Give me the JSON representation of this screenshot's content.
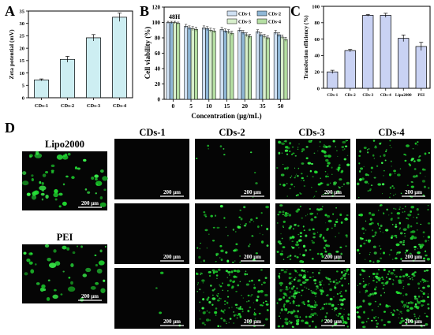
{
  "panels": {
    "A": "A",
    "B": "B",
    "C": "C",
    "D": "D"
  },
  "chart_data": [
    {
      "type": "bar",
      "panel": "A",
      "categories": [
        "CDs-1",
        "CDs-2",
        "CDs-3",
        "CDs-4"
      ],
      "values": [
        7.2,
        15.5,
        24.2,
        32.5
      ],
      "errors": [
        0.4,
        1.2,
        1.3,
        1.7
      ],
      "ylabel": "Zeta potential (mV)",
      "ylim": [
        0,
        35
      ],
      "yticks": [
        0,
        5,
        10,
        15,
        20,
        25,
        30,
        35
      ],
      "bar_color": "#cdeef2"
    },
    {
      "type": "bar",
      "panel": "B",
      "annotation": "48H",
      "xlabel": "Concentration (μg/mL)",
      "ylabel": "Cell viability (%)",
      "ylim": [
        0,
        120
      ],
      "yticks": [
        0,
        20,
        40,
        60,
        80,
        100,
        120
      ],
      "categories": [
        "0",
        "5",
        "10",
        "15",
        "20",
        "35",
        "50"
      ],
      "series": [
        {
          "name": "CDs-1",
          "color": "#cfe0f2",
          "values": [
            100,
            95,
            93,
            91,
            90,
            88,
            87
          ],
          "errors": [
            1.5,
            2.5,
            2.5,
            2.5,
            2.5,
            2.5,
            2.5
          ]
        },
        {
          "name": "CDs-2",
          "color": "#8fb7d6",
          "values": [
            100,
            93,
            92,
            89,
            87,
            84,
            84
          ],
          "errors": [
            1.5,
            2.5,
            2.5,
            2.5,
            2.5,
            2.5,
            2.5
          ]
        },
        {
          "name": "CDs-3",
          "color": "#d8efcc",
          "values": [
            100,
            92,
            90,
            88,
            84,
            82,
            81
          ],
          "errors": [
            1.5,
            2.5,
            2.5,
            2.5,
            2.5,
            2.5,
            2.5
          ]
        },
        {
          "name": "CDs-4",
          "color": "#b5dfa3",
          "values": [
            99,
            91,
            89,
            86,
            82,
            80,
            78
          ],
          "errors": [
            1.5,
            2.5,
            2.5,
            2.5,
            2.5,
            2.5,
            2.5
          ]
        }
      ],
      "legend": "top-right"
    },
    {
      "type": "bar",
      "panel": "C",
      "categories": [
        "CDs-1",
        "CDs-2",
        "CDs-3",
        "CDs-4",
        "Lipo2000",
        "PEI"
      ],
      "values": [
        20,
        46,
        89,
        89,
        61,
        51
      ],
      "errors": [
        2,
        1.5,
        1,
        2.5,
        4,
        5
      ],
      "ylabel": "Transfection efficiency (%)",
      "ylim": [
        0,
        100
      ],
      "yticks": [
        0,
        20,
        40,
        60,
        80,
        100
      ],
      "bar_color": "#c9d2f3"
    }
  ],
  "panel_d": {
    "columns": [
      "CDs-1",
      "CDs-2",
      "CDs-3",
      "CDs-4"
    ],
    "controls": [
      "Lipo2000",
      "PEI"
    ],
    "scale_bar": "200 μm"
  }
}
